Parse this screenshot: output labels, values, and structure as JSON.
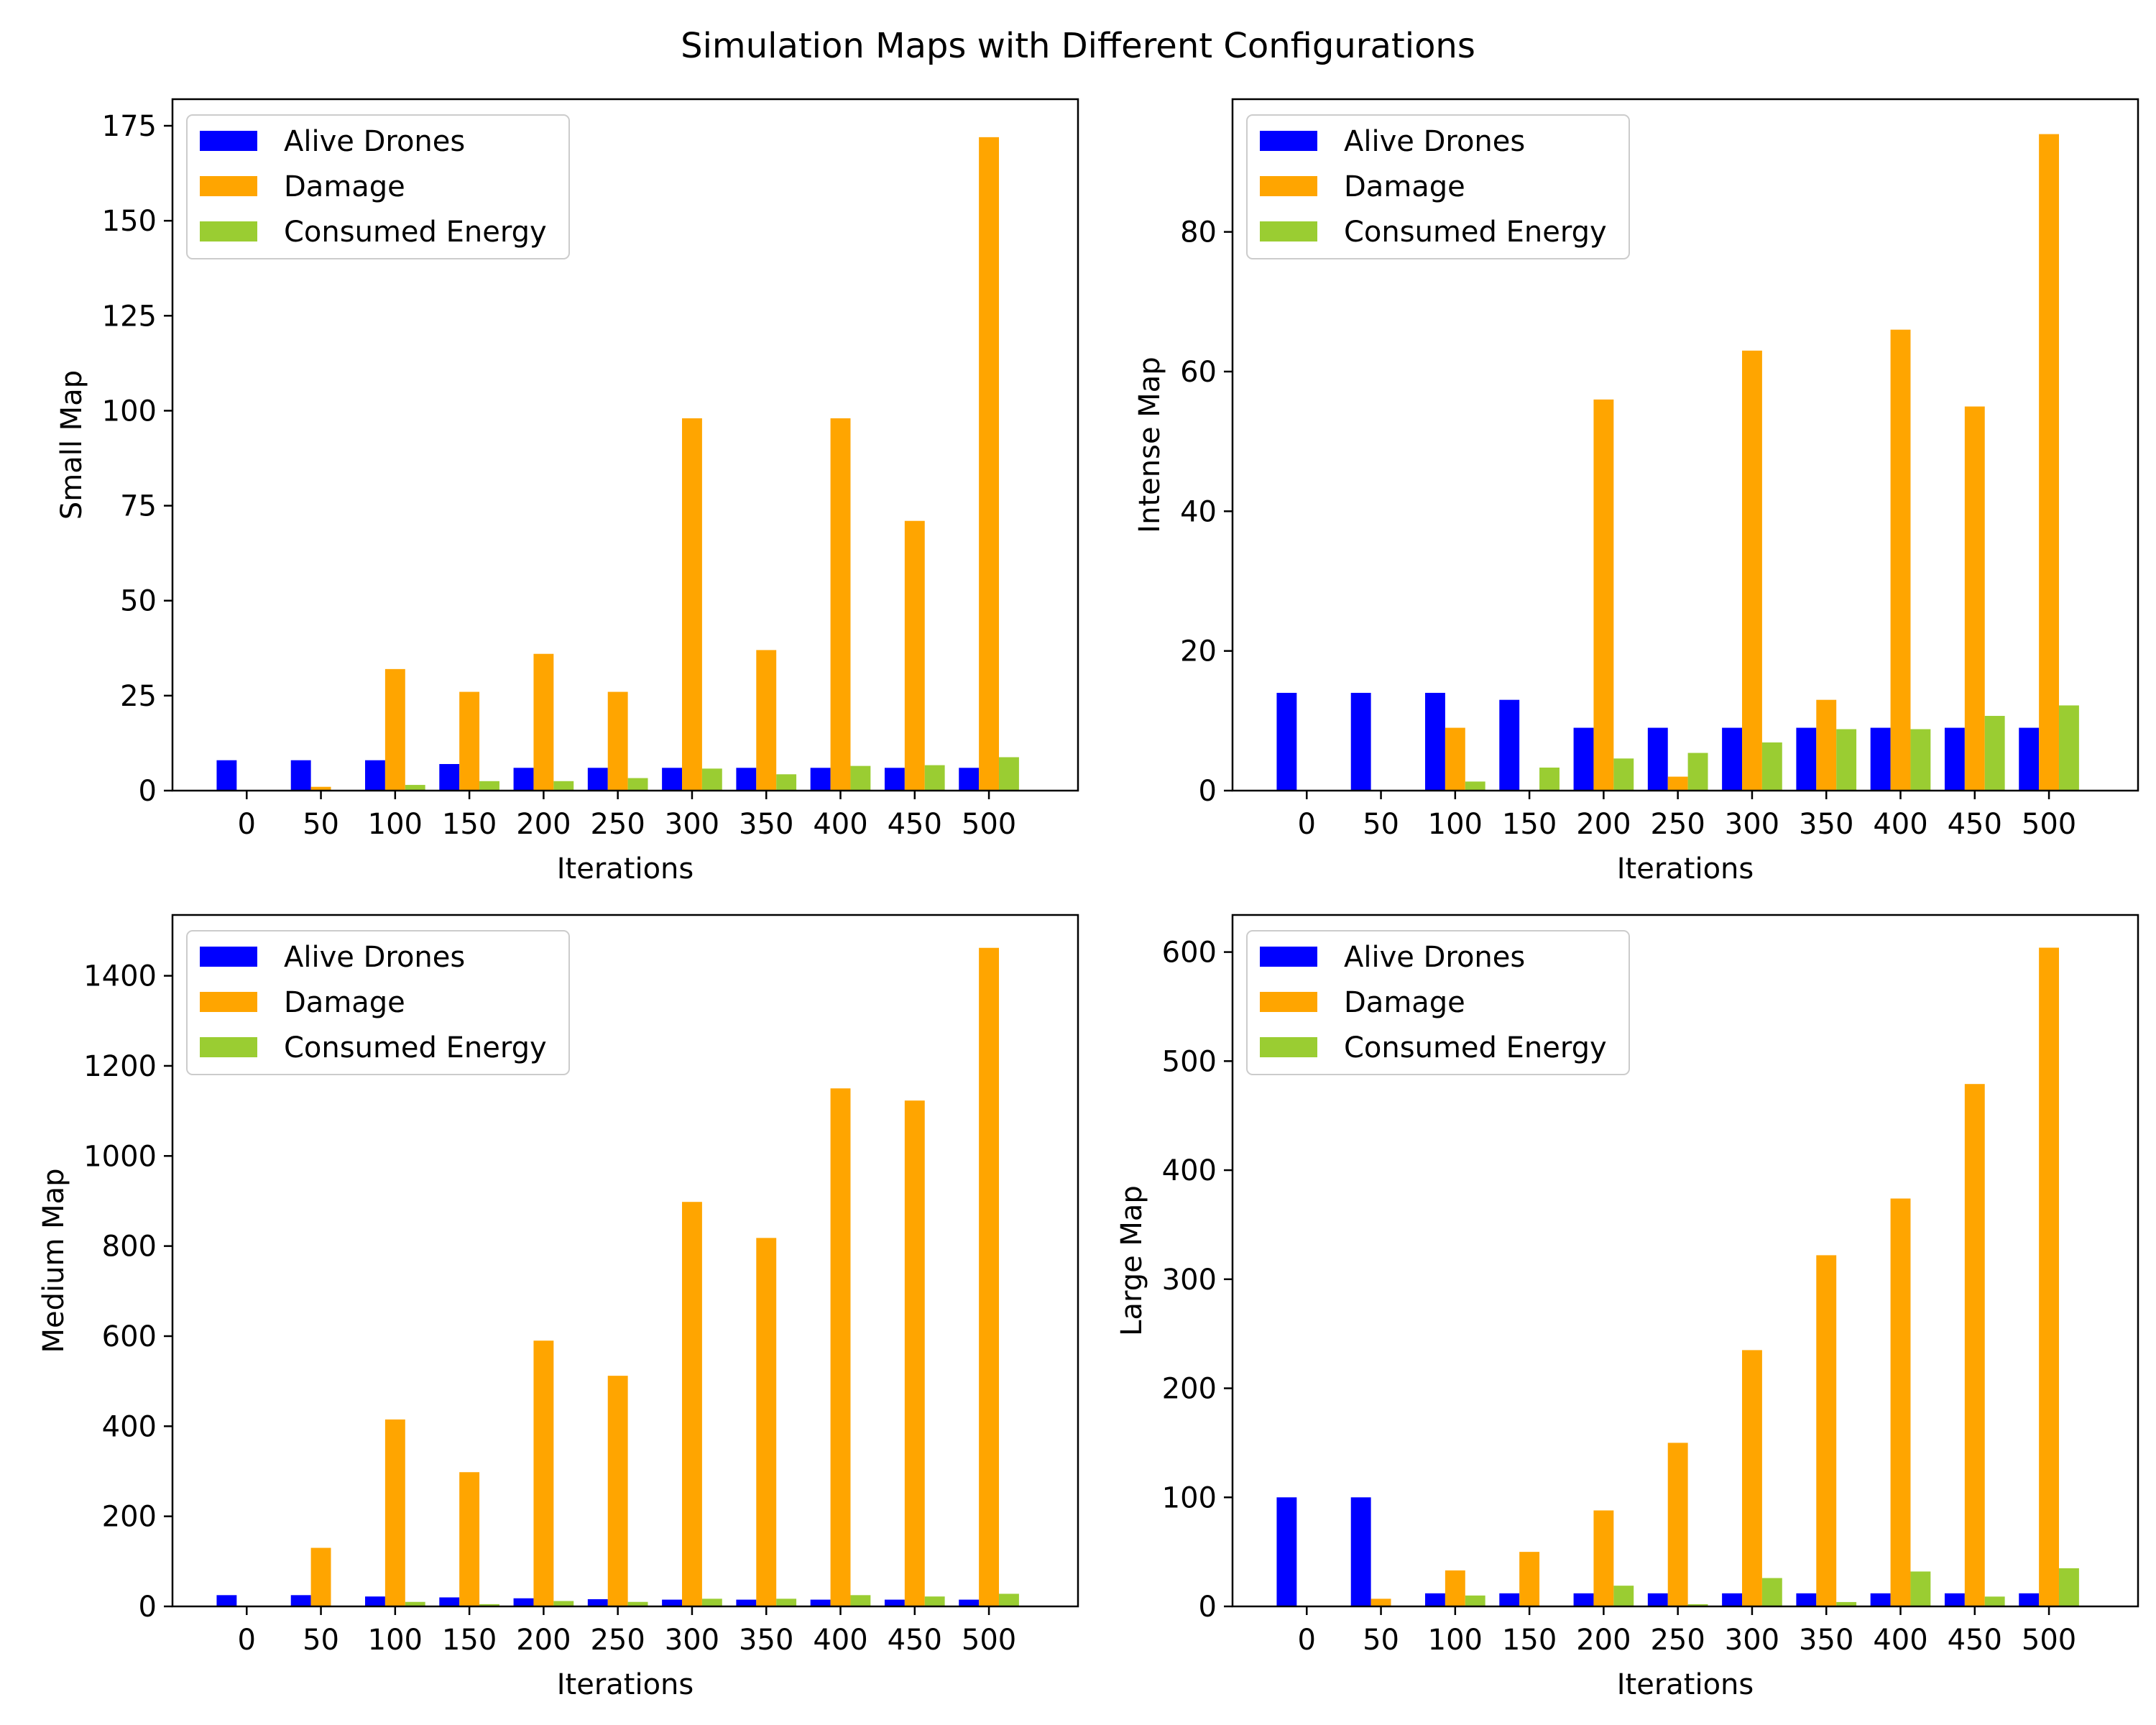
{
  "title": "Simulation Maps with Different Configurations",
  "legend_labels": [
    "Alive Drones",
    "Damage",
    "Consumed Energy"
  ],
  "colors": {
    "alive": "#0000ff",
    "damage": "#ffa500",
    "energy": "#9acd32"
  },
  "chart_data": [
    {
      "type": "bar",
      "xlabel": "Iterations",
      "ylabel": "Small Map",
      "categories": [
        "0",
        "50",
        "100",
        "150",
        "200",
        "250",
        "300",
        "350",
        "400",
        "450",
        "500"
      ],
      "ylim": [
        0,
        182
      ],
      "yticks": [
        0,
        25,
        50,
        75,
        100,
        125,
        150,
        175
      ],
      "legend": "top-left",
      "series": [
        {
          "name": "Alive Drones",
          "color": "#0000ff",
          "values": [
            8,
            8,
            8,
            7,
            6,
            6,
            6,
            6,
            6,
            6,
            6
          ]
        },
        {
          "name": "Damage",
          "color": "#ffa500",
          "values": [
            0,
            1,
            32,
            26,
            36,
            26,
            98,
            37,
            98,
            71,
            172
          ]
        },
        {
          "name": "Consumed Energy",
          "color": "#9acd32",
          "values": [
            0,
            0,
            1.5,
            2.5,
            2.5,
            3.3,
            5.8,
            4.3,
            6.5,
            6.7,
            8.8
          ]
        }
      ]
    },
    {
      "type": "bar",
      "xlabel": "Iterations",
      "ylabel": "Intense Map",
      "categories": [
        "0",
        "50",
        "100",
        "150",
        "200",
        "250",
        "300",
        "350",
        "400",
        "450",
        "500"
      ],
      "ylim": [
        0,
        99
      ],
      "yticks": [
        0,
        20,
        40,
        60,
        80
      ],
      "legend": "top-left",
      "series": [
        {
          "name": "Alive Drones",
          "color": "#0000ff",
          "values": [
            14,
            14,
            14,
            13,
            9,
            9,
            9,
            9,
            9,
            9,
            9
          ]
        },
        {
          "name": "Damage",
          "color": "#ffa500",
          "values": [
            0,
            0,
            9,
            0,
            56,
            2,
            63,
            13,
            66,
            55,
            94
          ]
        },
        {
          "name": "Consumed Energy",
          "color": "#9acd32",
          "values": [
            0,
            0,
            1.3,
            3.3,
            4.6,
            5.4,
            6.9,
            8.8,
            8.8,
            10.7,
            12.2
          ]
        }
      ]
    },
    {
      "type": "bar",
      "xlabel": "Iterations",
      "ylabel": "Medium Map",
      "categories": [
        "0",
        "50",
        "100",
        "150",
        "200",
        "250",
        "300",
        "350",
        "400",
        "450",
        "500"
      ],
      "ylim": [
        0,
        1535
      ],
      "yticks": [
        0,
        200,
        400,
        600,
        800,
        1000,
        1200,
        1400
      ],
      "legend": "top-left",
      "series": [
        {
          "name": "Alive Drones",
          "color": "#0000ff",
          "values": [
            25,
            25,
            22,
            20,
            18,
            16,
            15,
            15,
            15,
            15,
            15
          ]
        },
        {
          "name": "Damage",
          "color": "#ffa500",
          "values": [
            0,
            130,
            415,
            298,
            590,
            512,
            898,
            818,
            1150,
            1123,
            1462
          ]
        },
        {
          "name": "Consumed Energy",
          "color": "#9acd32",
          "values": [
            0,
            0,
            10,
            5,
            12,
            10,
            17,
            17,
            25,
            22,
            28
          ]
        }
      ]
    },
    {
      "type": "bar",
      "xlabel": "Iterations",
      "ylabel": "Large Map",
      "categories": [
        "0",
        "50",
        "100",
        "150",
        "200",
        "250",
        "300",
        "350",
        "400",
        "450",
        "500"
      ],
      "ylim": [
        0,
        634
      ],
      "yticks": [
        0,
        100,
        200,
        300,
        400,
        500,
        600
      ],
      "legend": "top-left",
      "series": [
        {
          "name": "Alive Drones",
          "color": "#0000ff",
          "values": [
            100,
            100,
            12,
            12,
            12,
            12,
            12,
            12,
            12,
            12,
            12
          ]
        },
        {
          "name": "Damage",
          "color": "#ffa500",
          "values": [
            0,
            7,
            33,
            50,
            88,
            150,
            235,
            322,
            374,
            479,
            604
          ]
        },
        {
          "name": "Consumed Energy",
          "color": "#9acd32",
          "values": [
            0,
            0,
            10,
            0,
            19,
            2,
            26,
            4,
            32,
            9,
            35
          ]
        }
      ]
    }
  ]
}
